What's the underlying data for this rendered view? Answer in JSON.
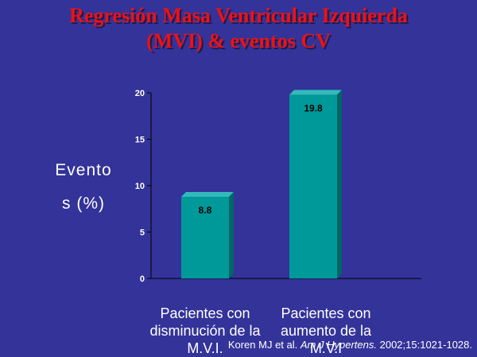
{
  "slide": {
    "title_line1": "Regresión Masa Ventricular Izquierda",
    "title_line2": "(MVI) & eventos CV",
    "citation_authors": "Koren MJ et al.",
    "citation_journal": "Am J Hypertens.",
    "citation_rest": "2002;15:1021-1028."
  },
  "colors": {
    "background": "#333399",
    "title": "#ee1111",
    "bar_front": "#009999",
    "bar_top": "#33bbbb",
    "bar_side": "#006666",
    "text": "#ffffff",
    "data_label": "#000000"
  },
  "chart_data": {
    "type": "bar",
    "categories": [
      "Pacientes con disminución de la M.V.I.",
      "Pacientes con aumento de la M.V.I"
    ],
    "category_lines": [
      [
        "Pacientes con",
        "disminución de la",
        "M.V.I."
      ],
      [
        "Pacientes con",
        "aumento de la",
        "M.V.I"
      ]
    ],
    "values": [
      8.8,
      19.8
    ],
    "value_labels": [
      "8.8",
      "19.8"
    ],
    "ylabel_lines": [
      "Evento",
      "s (%)"
    ],
    "ylim": [
      0,
      20
    ],
    "yticks": [
      0,
      5,
      10,
      15,
      20
    ],
    "grid": false,
    "style": "3d"
  }
}
